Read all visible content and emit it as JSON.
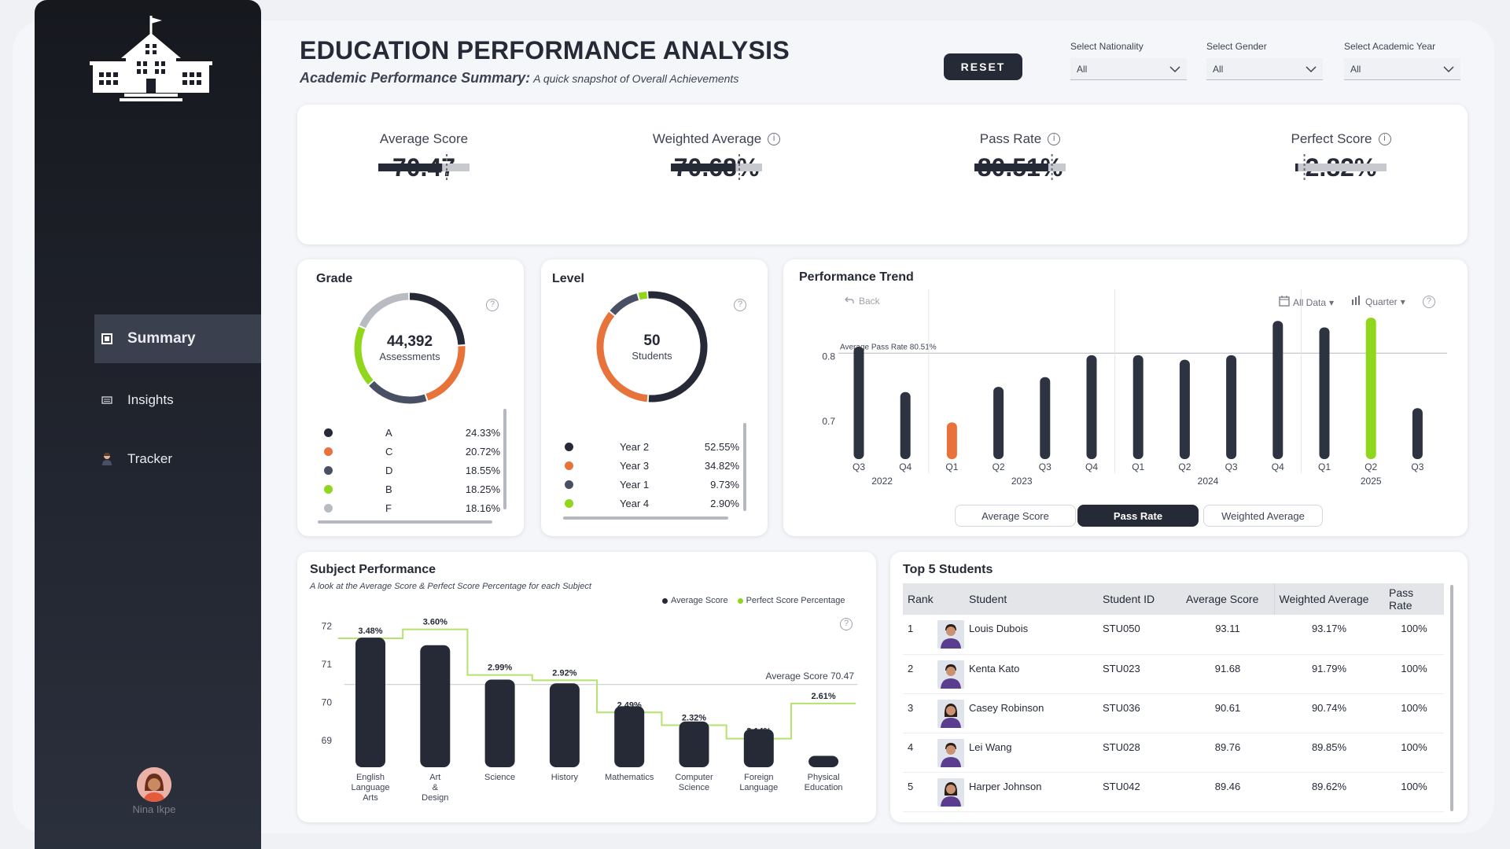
{
  "sidebar": {
    "items": [
      {
        "label": "Summary",
        "icon": "summary-icon",
        "active": true
      },
      {
        "label": "Insights",
        "icon": "insights-icon",
        "active": false
      },
      {
        "label": "Tracker",
        "icon": "tracker-icon",
        "active": false
      }
    ],
    "user_name": "Nina Ikpe"
  },
  "header": {
    "title": "EDUCATION PERFORMANCE ANALYSIS",
    "subtitle_bold": "Academic Performance Summary:",
    "subtitle_rest": "A quick snapshot of Overall Achievements",
    "reset_label": "RESET"
  },
  "filters": [
    {
      "label": "Select Nationality",
      "value": "All"
    },
    {
      "label": "Select Gender",
      "value": "All"
    },
    {
      "label": "Select Academic Year",
      "value": "All"
    }
  ],
  "kpis": [
    {
      "label": "Average Score",
      "value": "70.47",
      "fill": 0.7,
      "target": 0.75,
      "info": false
    },
    {
      "label": "Weighted Average",
      "value": "70.68%",
      "fill": 0.71,
      "target": 0.75,
      "info": true
    },
    {
      "label": "Pass Rate",
      "value": "80.51%",
      "fill": 0.81,
      "target": 0.85,
      "info": true
    },
    {
      "label": "Perfect Score",
      "value": "2.82%",
      "fill": 0.03,
      "target": 0.1,
      "info": true
    }
  ],
  "grade": {
    "title": "Grade",
    "center_value": "44,392",
    "center_label": "Assessments",
    "items": [
      {
        "label": "A",
        "pct": "24.33%",
        "value": 24.33,
        "color": "#252a36"
      },
      {
        "label": "C",
        "pct": "20.72%",
        "value": 20.72,
        "color": "#e8733a"
      },
      {
        "label": "D",
        "pct": "18.55%",
        "value": 18.55,
        "color": "#4a5064"
      },
      {
        "label": "B",
        "pct": "18.25%",
        "value": 18.25,
        "color": "#8fd61c"
      },
      {
        "label": "F",
        "pct": "18.16%",
        "value": 18.16,
        "color": "#b8bbc2"
      }
    ]
  },
  "level": {
    "title": "Level",
    "center_value": "50",
    "center_label": "Students",
    "items": [
      {
        "label": "Year 2",
        "pct": "52.55%",
        "value": 52.55,
        "color": "#252a36"
      },
      {
        "label": "Year 3",
        "pct": "34.82%",
        "value": 34.82,
        "color": "#e8733a"
      },
      {
        "label": "Year 1",
        "pct": "9.73%",
        "value": 9.73,
        "color": "#4a5064"
      },
      {
        "label": "Year 4",
        "pct": "2.90%",
        "value": 2.9,
        "color": "#8fd61c"
      }
    ]
  },
  "trend": {
    "title": "Performance Trend",
    "back_label": "Back",
    "all_data_label": "All Data",
    "period_label": "Quarter",
    "toggles": [
      {
        "label": "Average Score",
        "active": false
      },
      {
        "label": "Pass Rate",
        "active": true
      },
      {
        "label": "Weighted Average",
        "active": false
      }
    ]
  },
  "subject": {
    "title": "Subject Performance",
    "subtitle": "A look at the Average Score & Perfect Score Percentage for each Subject",
    "legend_avg": "Average Score",
    "legend_perfect": "Perfect Score Percentage"
  },
  "top_students": {
    "title": "Top 5 Students",
    "columns": [
      "Rank",
      "Student",
      "Student ID",
      "Average Score",
      "Weighted Average",
      "Pass Rate"
    ],
    "rows": [
      {
        "rank": "1",
        "name": "Louis Dubois",
        "id": "STU050",
        "avg": "93.11",
        "weighted": "93.17%",
        "pass": "100%",
        "gender": "m"
      },
      {
        "rank": "2",
        "name": "Kenta Kato",
        "id": "STU023",
        "avg": "91.68",
        "weighted": "91.79%",
        "pass": "100%",
        "gender": "m"
      },
      {
        "rank": "3",
        "name": "Casey Robinson",
        "id": "STU036",
        "avg": "90.61",
        "weighted": "90.74%",
        "pass": "100%",
        "gender": "f"
      },
      {
        "rank": "4",
        "name": "Lei Wang",
        "id": "STU028",
        "avg": "89.76",
        "weighted": "89.85%",
        "pass": "100%",
        "gender": "m"
      },
      {
        "rank": "5",
        "name": "Harper Johnson",
        "id": "STU042",
        "avg": "89.46",
        "weighted": "89.62%",
        "pass": "100%",
        "gender": "f"
      }
    ]
  },
  "chart_data": [
    {
      "type": "bar",
      "title": "Performance Trend",
      "metric": "Pass Rate",
      "categories": [
        "Q3",
        "Q4",
        "Q1",
        "Q2",
        "Q3",
        "Q4",
        "Q1",
        "Q2",
        "Q3",
        "Q4",
        "Q1",
        "Q2",
        "Q3"
      ],
      "groups": [
        {
          "label": "2022",
          "count": 2
        },
        {
          "label": "2023",
          "count": 4
        },
        {
          "label": "2024",
          "count": 4
        },
        {
          "label": "2025",
          "count": 3
        }
      ],
      "values": [
        0.815,
        0.745,
        0.698,
        0.753,
        0.768,
        0.802,
        0.802,
        0.795,
        0.802,
        0.855,
        0.845,
        0.86,
        0.72
      ],
      "highlight": {
        "2": "#e8733a",
        "11": "#8fd61c"
      },
      "reference_line": {
        "label": "Average Pass Rate 80.51%",
        "value": 0.8051
      },
      "yticks": [
        0.7,
        0.8
      ],
      "ylim": [
        0.645,
        0.865
      ],
      "grid": false
    },
    {
      "type": "bar",
      "title": "Subject Performance",
      "categories": [
        "English Language Arts",
        "Art & Design",
        "Science",
        "History",
        "Mathematics",
        "Computer Science",
        "Foreign Language",
        "Physical Education"
      ],
      "series": [
        {
          "name": "Average Score",
          "values": [
            71.7,
            71.5,
            70.6,
            70.5,
            69.9,
            69.5,
            69.3,
            68.6
          ],
          "color": "#252a36"
        },
        {
          "name": "Perfect Score Percentage",
          "values": [
            3.48,
            3.6,
            2.99,
            2.92,
            2.49,
            2.32,
            2.14,
            2.61
          ],
          "labels": [
            "3.48%",
            "3.60%",
            "2.99%",
            "2.92%",
            "2.49%",
            "2.32%",
            "2.14%",
            "2.61%"
          ],
          "color": "#8fd61c"
        }
      ],
      "reference_line": {
        "label": "Average Score 70.47",
        "value": 70.47
      },
      "yticks": [
        69,
        70,
        71,
        72
      ],
      "ylim": [
        68.3,
        72.3
      ],
      "legend": "top-right"
    }
  ]
}
